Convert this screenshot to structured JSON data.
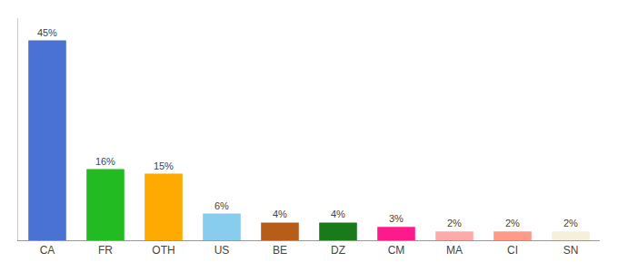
{
  "chart_data": {
    "type": "bar",
    "categories": [
      "CA",
      "FR",
      "OTH",
      "US",
      "BE",
      "DZ",
      "CM",
      "MA",
      "CI",
      "SN"
    ],
    "values": [
      45,
      16,
      15,
      6,
      4,
      4,
      3,
      2,
      2,
      2
    ],
    "value_labels": [
      "45%",
      "16%",
      "15%",
      "6%",
      "4%",
      "4%",
      "3%",
      "2%",
      "2%",
      "2%"
    ],
    "colors": [
      "#4a72d4",
      "#22bb22",
      "#ffaa00",
      "#88ccee",
      "#b85c1a",
      "#1a7a1a",
      "#ff1a8c",
      "#ffaaaa",
      "#ff9988",
      "#f5f0dc"
    ],
    "ylim": [
      0,
      50
    ],
    "data_labels": true,
    "tick_labels": "x",
    "grid": false
  }
}
